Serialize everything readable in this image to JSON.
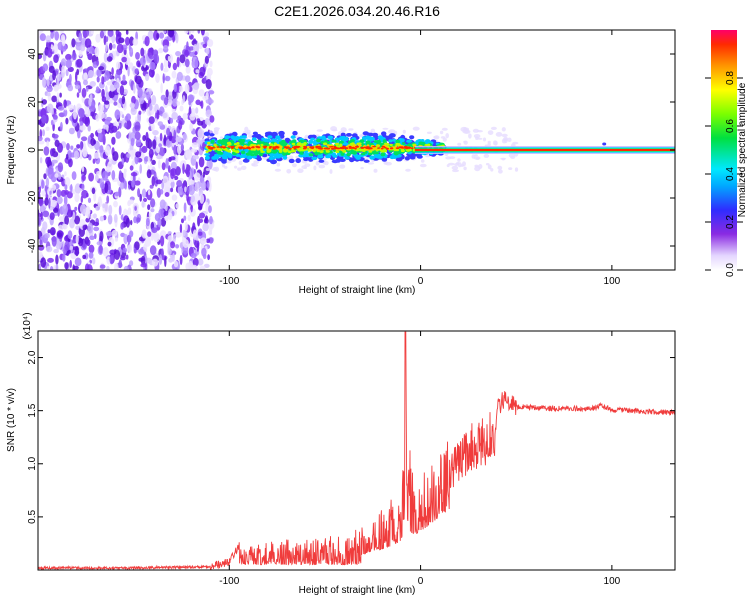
{
  "title": "C2E1.2026.034.20.46.R16",
  "colors": {
    "snr_line": "#f03c3c",
    "band_core": "#ff2a00",
    "band_mid": "#00e060",
    "band_outer": "#00c8ff",
    "noise_dark": "#6a1de8",
    "noise_light": "#d8c8ff"
  },
  "chart_data": [
    {
      "type": "heatmap",
      "name": "spectrogram",
      "xlabel": "Height of straight line (km)",
      "ylabel": "Frequency (Hz)",
      "xlim": [
        -200,
        133
      ],
      "ylim": [
        -50,
        50
      ],
      "xticks": [
        -100,
        0,
        100
      ],
      "xtick_labels": [
        "-100",
        "0",
        "100"
      ],
      "yticks": [
        -40,
        -20,
        0,
        20,
        40
      ],
      "ytick_labels": [
        "-40",
        "-20",
        "0",
        "20",
        "40"
      ],
      "colorbar": {
        "label": "Normalized spectral amplitude",
        "range": [
          0,
          1
        ],
        "ticks": [
          0.0,
          0.2,
          0.4,
          0.6,
          0.8
        ],
        "tick_labels": [
          "0.0",
          "0.2",
          "0.4",
          "0.6",
          "0.8"
        ],
        "colormap": "rainbow (white→violet→blue→cyan→green→yellow→orange→red)"
      },
      "regions": [
        {
          "description": "broadband noise",
          "x_range": [
            -200,
            -112
          ],
          "freq_range": [
            -50,
            50
          ],
          "amplitude": 0.1
        },
        {
          "description": "signal band",
          "x_range": [
            -112,
            12
          ],
          "freq_range": [
            -5,
            6
          ],
          "amplitude": 0.6
        },
        {
          "description": "narrow carrier",
          "x_range": [
            12,
            133
          ],
          "freq_range": [
            -1,
            1
          ],
          "amplitude": 1.0
        }
      ]
    },
    {
      "type": "line",
      "name": "snr",
      "xlabel": "Height of straight line (km)",
      "ylabel": "SNR (10 * v/v)",
      "y_multiplier": "(x10⁴)",
      "xlim": [
        -200,
        133
      ],
      "ylim": [
        0,
        2.25
      ],
      "xticks": [
        -100,
        0,
        100
      ],
      "xtick_labels": [
        "-100",
        "0",
        "100"
      ],
      "yticks": [
        0.5,
        1.0,
        1.5,
        2.0
      ],
      "ytick_labels": [
        "0.5",
        "1.0",
        "1.5",
        "2.0"
      ],
      "series": [
        {
          "x": [
            -200,
            -150,
            -110,
            -100,
            -95,
            -90,
            -80,
            -70,
            -60,
            -50,
            -40,
            -30,
            -25,
            -20,
            -15,
            -10,
            -8,
            -5,
            0,
            5,
            10,
            15,
            20,
            25,
            30,
            35,
            40,
            44,
            50,
            60,
            70,
            80,
            90,
            95,
            100,
            110,
            120,
            133
          ],
          "values": [
            0.02,
            0.02,
            0.03,
            0.07,
            0.22,
            0.2,
            0.22,
            0.24,
            0.26,
            0.26,
            0.28,
            0.34,
            0.42,
            0.52,
            0.62,
            0.7,
            2.2,
            0.8,
            0.82,
            0.92,
            1.0,
            1.1,
            1.28,
            1.38,
            1.45,
            1.48,
            1.52,
            1.62,
            1.54,
            1.53,
            1.52,
            1.52,
            1.52,
            1.55,
            1.51,
            1.5,
            1.49,
            1.48
          ]
        }
      ]
    }
  ]
}
